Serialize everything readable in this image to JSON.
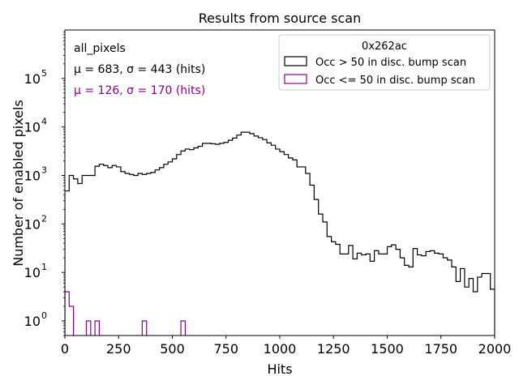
{
  "chart_data": {
    "type": "histogram",
    "title": "Results from source scan",
    "xlabel": "Hits",
    "ylabel": "Number of enabled pixels",
    "xlim": [
      0,
      2000
    ],
    "ylim": [
      0.5,
      1000000
    ],
    "yscale": "log",
    "grid": false,
    "x_ticks": [
      0,
      250,
      500,
      750,
      1000,
      1250,
      1500,
      1750,
      2000
    ],
    "x_tick_labels": [
      "0",
      "250",
      "500",
      "750",
      "1000",
      "1250",
      "1500",
      "1750",
      "2000"
    ],
    "y_ticks": [
      {
        "value": 1,
        "base": "10",
        "exp": "0"
      },
      {
        "value": 10,
        "base": "10",
        "exp": "1"
      },
      {
        "value": 100,
        "base": "10",
        "exp": "2"
      },
      {
        "value": 1000,
        "base": "10",
        "exp": "3"
      },
      {
        "value": 10000,
        "base": "10",
        "exp": "4"
      },
      {
        "value": 100000,
        "base": "10",
        "exp": "5"
      }
    ],
    "annotations": {
      "region": "all_pixels",
      "stats_series_1": "μ = 683, σ = 443 (hits)",
      "stats_series_2": "μ = 126, σ = 170 (hits)"
    },
    "legend": {
      "title": "0x262ac",
      "placement": "top-right"
    },
    "bin_width": 20,
    "bin_start": 0,
    "series": [
      {
        "name": "Occ > 50 in disc. bump scan",
        "color": "#000000",
        "style": "step",
        "values": [
          480,
          1000,
          850,
          680,
          1000,
          1000,
          1000,
          1550,
          1700,
          1600,
          1450,
          1600,
          1500,
          1200,
          1100,
          1050,
          1000,
          1100,
          1050,
          1100,
          1150,
          1300,
          1450,
          1700,
          1900,
          2200,
          2700,
          3200,
          3500,
          3400,
          3700,
          4000,
          4600,
          4600,
          4500,
          4400,
          4600,
          4800,
          5300,
          5900,
          6800,
          7800,
          7800,
          7300,
          6500,
          6000,
          5500,
          4700,
          4200,
          3500,
          3100,
          2700,
          2300,
          2100,
          1500,
          1500,
          1100,
          630,
          320,
          160,
          110,
          55,
          43,
          38,
          24,
          24,
          36,
          19,
          25,
          23,
          24,
          17,
          28,
          24,
          24,
          34,
          37,
          30,
          20,
          14,
          13,
          31,
          23,
          22,
          27,
          28,
          25,
          24,
          20,
          18,
          13,
          6.5,
          12,
          5,
          7.5,
          4,
          8,
          9.5,
          9.5,
          4.5
        ]
      },
      {
        "name": "Occ <= 50 in disc. bump scan",
        "color": "#8b008b",
        "style": "step",
        "values": [
          4,
          2,
          0,
          0,
          0,
          1,
          0,
          1,
          0,
          0,
          0,
          0,
          0,
          0,
          0,
          0,
          0,
          0,
          1,
          0,
          0,
          0,
          0,
          0,
          0,
          0,
          0,
          1
        ]
      }
    ]
  }
}
